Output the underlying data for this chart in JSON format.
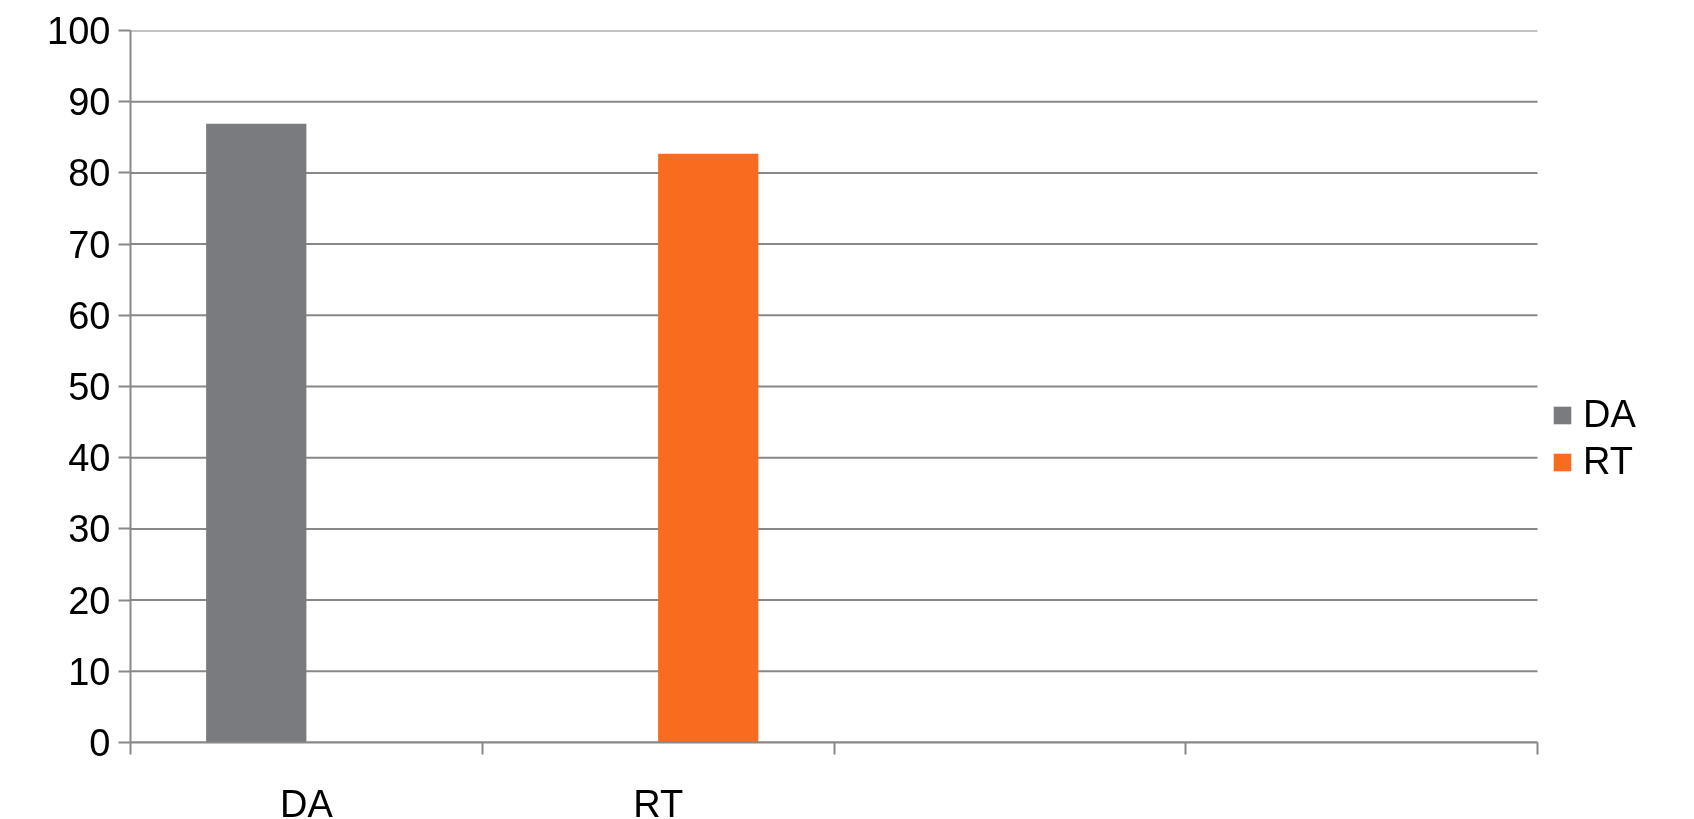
{
  "chart_data": {
    "type": "bar",
    "categories": [
      "DA",
      "RT",
      null,
      null
    ],
    "series": [
      {
        "name": "DA",
        "color": "#7a7b7f",
        "values": [
          86.9,
          null,
          null,
          null
        ]
      },
      {
        "name": "RT",
        "color": "#f96b1e",
        "values": [
          null,
          82.7,
          null,
          null
        ]
      }
    ],
    "ylim": [
      0,
      100
    ],
    "yticks": [
      0,
      10,
      20,
      30,
      40,
      50,
      60,
      70,
      80,
      90,
      100
    ],
    "grid": "y",
    "legend": "right"
  }
}
